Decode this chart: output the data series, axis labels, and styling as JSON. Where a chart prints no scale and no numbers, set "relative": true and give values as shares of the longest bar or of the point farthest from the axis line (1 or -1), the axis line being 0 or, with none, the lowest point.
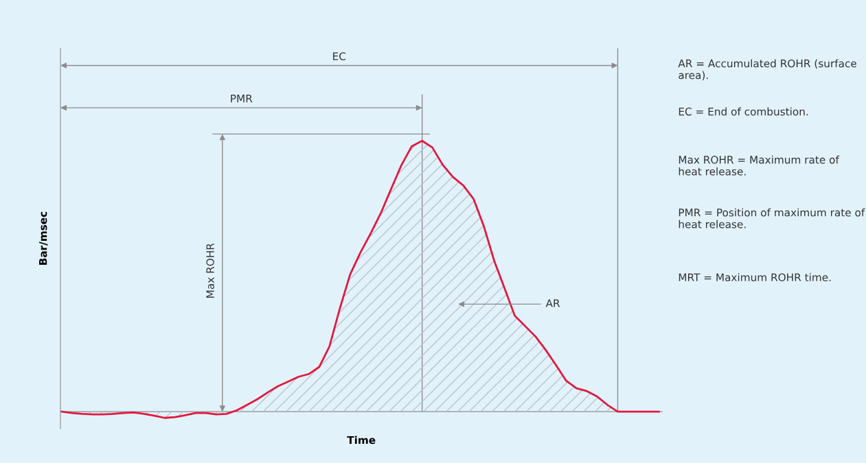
{
  "chart_data": {
    "type": "area",
    "relative": true,
    "xlabel": "Time",
    "ylabel": "Bar/msec",
    "grid": false,
    "legend": false,
    "categories": [
      null,
      null,
      null,
      null,
      null,
      null,
      null,
      null,
      null,
      null,
      null,
      null,
      null,
      null,
      null,
      null,
      null,
      null,
      null,
      null,
      null,
      null,
      null,
      null,
      null,
      null,
      null,
      null,
      null,
      null,
      null,
      null,
      null,
      null,
      null,
      null,
      null,
      null,
      null,
      null,
      null,
      null,
      null,
      null,
      null,
      null,
      null,
      null,
      null,
      null,
      null,
      null,
      null,
      null,
      null,
      null,
      null,
      null,
      null
    ],
    "series": [
      {
        "color": "#e3183c",
        "values": [
          0,
          -0.005,
          -0.008,
          -0.01,
          -0.01,
          -0.008,
          -0.005,
          -0.003,
          -0.008,
          -0.015,
          -0.023,
          -0.02,
          -0.013,
          -0.005,
          -0.005,
          -0.01,
          -0.008,
          0.005,
          0.025,
          0.046,
          0.071,
          0.094,
          0.111,
          0.129,
          0.139,
          0.165,
          0.241,
          0.38,
          0.506,
          0.587,
          0.658,
          0.734,
          0.823,
          0.911,
          0.98,
          1,
          0.975,
          0.911,
          0.866,
          0.835,
          0.785,
          0.684,
          0.557,
          0.456,
          0.354,
          0.316,
          0.278,
          0.228,
          0.172,
          0.114,
          0.086,
          0.076,
          0.056,
          0.025,
          0,
          0,
          0,
          0,
          0
        ]
      }
    ],
    "annotations": [
      "EC",
      "PMR",
      "Max ROHR",
      "AR",
      "AR = Accumulated ROHR (surface area).",
      "EC = End of combustion.",
      "Max ROHR = Maximum rate of heat release.",
      "PMR = Position of maximum rate of heat release.",
      "MRT = Maximum ROHR time."
    ]
  }
}
